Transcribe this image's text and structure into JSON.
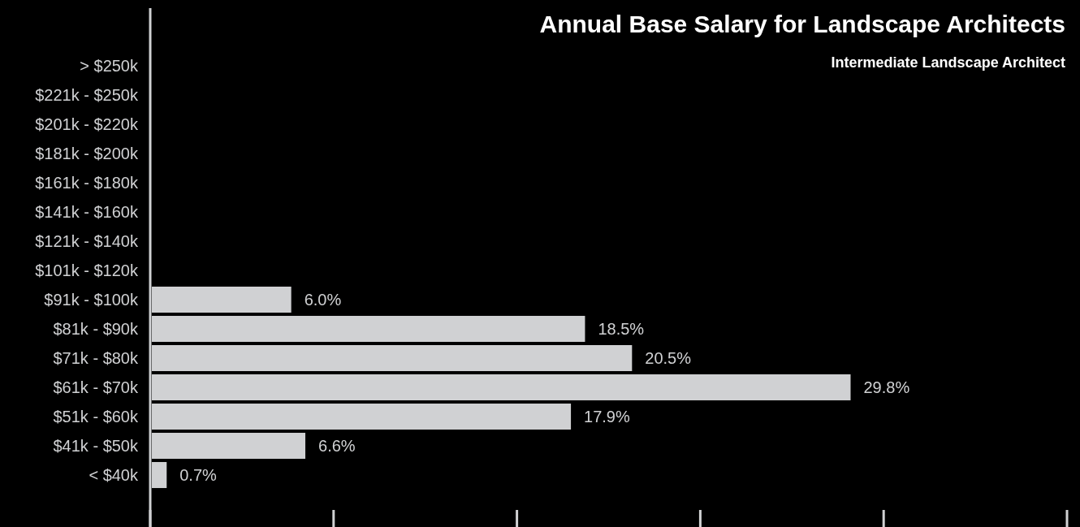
{
  "chart_data": {
    "type": "bar",
    "orientation": "horizontal",
    "title": "Annual Base Salary for Landscape Architects",
    "subtitle": "Intermediate Landscape Architect",
    "categories": [
      "> $250k",
      "$221k - $250k",
      "$201k - $220k",
      "$181k - $200k",
      "$161k - $180k",
      "$141k - $160k",
      "$121k - $140k",
      "$101k - $120k",
      "$91k - $100k",
      "$81k - $90k",
      "$71k - $80k",
      "$61k - $70k",
      "$51k - $60k",
      "$41k - $50k",
      "< $40k"
    ],
    "values": [
      0,
      0,
      0,
      0,
      0,
      0,
      0,
      0,
      6.0,
      18.5,
      20.5,
      29.8,
      17.9,
      6.6,
      0.7
    ],
    "value_labels": [
      null,
      null,
      null,
      null,
      null,
      null,
      null,
      null,
      "6.0%",
      "18.5%",
      "20.5%",
      "29.8%",
      "17.9%",
      "6.6%",
      "0.7%"
    ],
    "color": "#d0d1d3",
    "tick_labels": "y"
  }
}
